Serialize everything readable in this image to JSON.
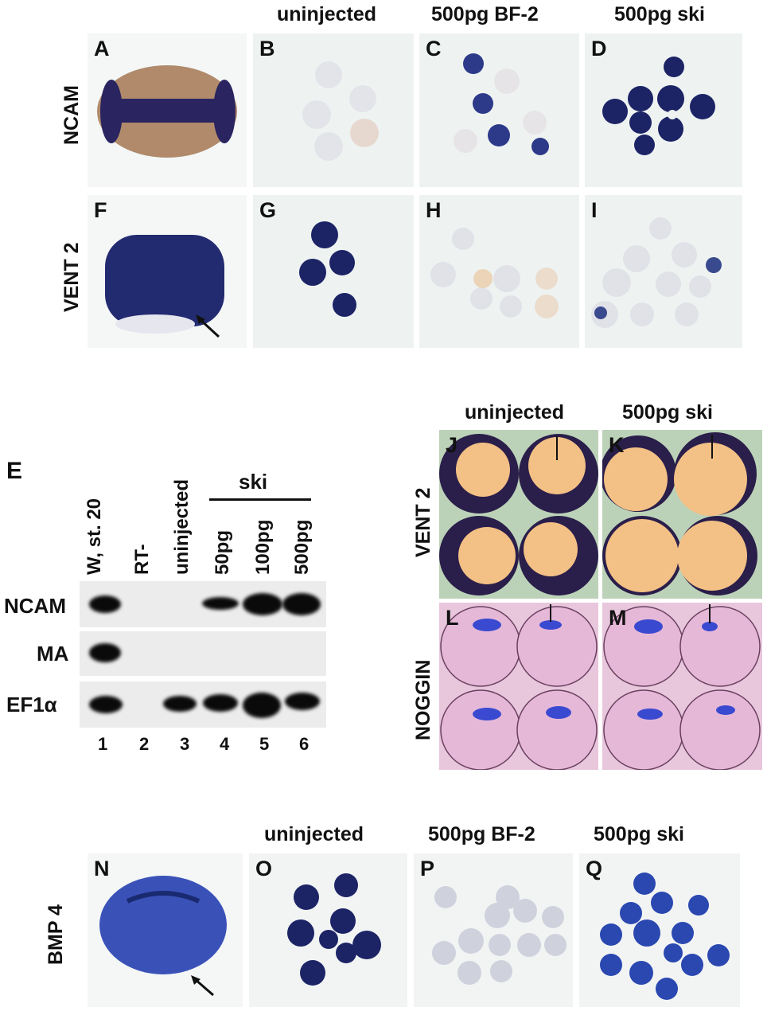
{
  "top": {
    "headers": [
      "uninjected",
      "500pg BF-2",
      "500pg ski"
    ],
    "row_labels": [
      "NCAM",
      "VENT 2"
    ],
    "panels": [
      "A",
      "B",
      "C",
      "D",
      "F",
      "G",
      "H",
      "I"
    ]
  },
  "gel": {
    "panel": "E",
    "lanes": [
      "W, st. 20",
      "RT-",
      "uninjected",
      "50pg",
      "100pg",
      "500pg"
    ],
    "group_label": "ski",
    "rows": [
      "NCAM",
      "MA",
      "EF1α"
    ],
    "lane_numbers": [
      "1",
      "2",
      "3",
      "4",
      "5",
      "6"
    ]
  },
  "right": {
    "headers": [
      "uninjected",
      "500pg ski"
    ],
    "row_labels": [
      "VENT 2",
      "NOGGIN"
    ],
    "panels": [
      "J",
      "K",
      "L",
      "M"
    ]
  },
  "bottom": {
    "headers": [
      "uninjected",
      "500pg BF-2",
      "500pg ski"
    ],
    "row_label": "BMP 4",
    "panels": [
      "N",
      "O",
      "P",
      "Q"
    ]
  },
  "colors": {
    "stain": "#1e1e6e",
    "background_top": "#eef3f2",
    "pink": "#e6b8d8",
    "orange": "#f3c085",
    "gel": "#ececec"
  }
}
